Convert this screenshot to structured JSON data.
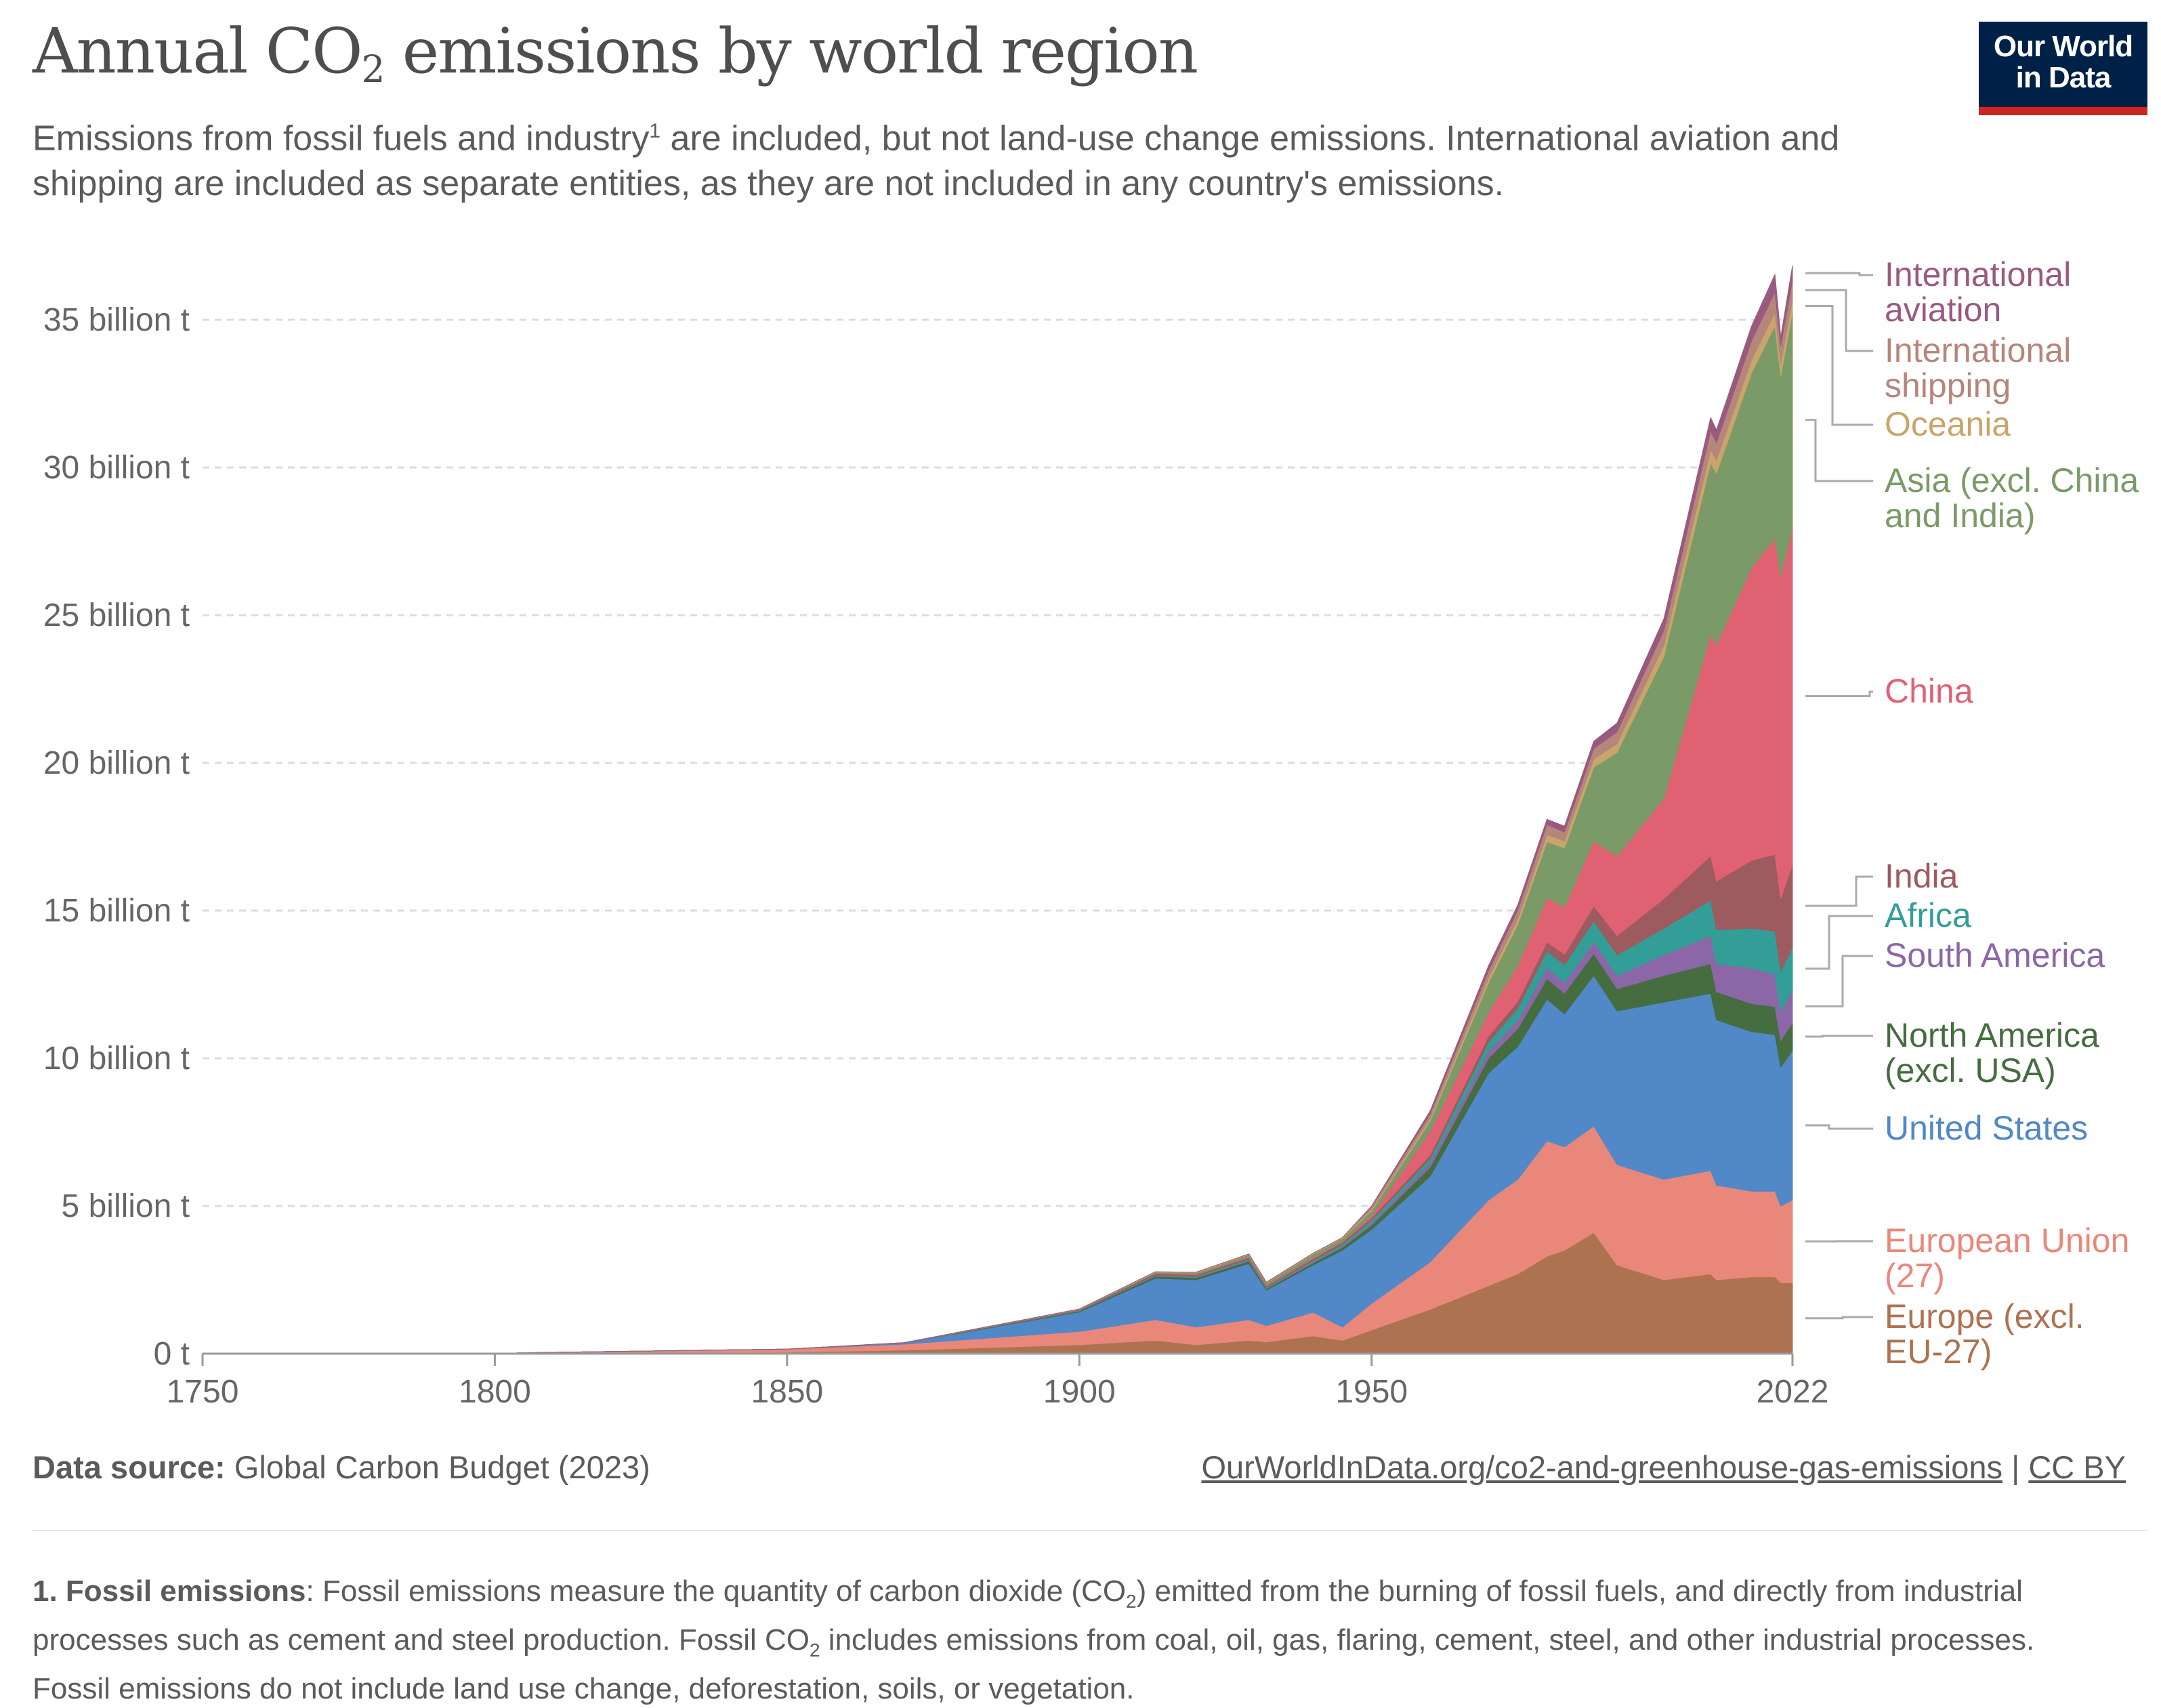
{
  "header": {
    "title_pre": "Annual CO",
    "title_sub": "2",
    "title_post": " emissions by world region",
    "subtitle_pre": "Emissions from fossil fuels and industry",
    "subtitle_sup": "1",
    "subtitle_post": " are included, but not land-use change emissions. International aviation and shipping are included as separate entities, as they are not included in any country's emissions.",
    "logo_line1": "Our World",
    "logo_line2": "in Data"
  },
  "footer": {
    "source_label": "Data source:",
    "source_value": " Global Carbon Budget (2023)",
    "link_text": "OurWorldInData.org/co2-and-greenhouse-gas-emissions",
    "separator": " | ",
    "license": "CC BY",
    "footnote_label": "1. Fossil emissions",
    "footnote_a": ": Fossil emissions measure the quantity of carbon dioxide (CO",
    "footnote_sub1": "2",
    "footnote_b": ") emitted from the burning of fossil fuels, and directly from industrial processes such as cement and steel production. Fossil CO",
    "footnote_sub2": "2",
    "footnote_c": " includes emissions from coal, oil, gas, flaring, cement, steel, and other industrial processes. Fossil emissions do not include land use change, deforestation, soils, or vegetation."
  },
  "chart_data": {
    "type": "area",
    "stacked": true,
    "title": "Annual CO2 emissions by world region",
    "xlabel": "",
    "ylabel": "",
    "xlim": [
      1750,
      2022
    ],
    "ylim": [
      0,
      37.5
    ],
    "unit": "billion t",
    "grid": "horizontal dashed",
    "legend": "right (end labels)",
    "x_ticks": [
      1750,
      1800,
      1850,
      1900,
      1950,
      2022
    ],
    "x_tick_labels": [
      "1750",
      "1800",
      "1850",
      "1900",
      "1950",
      "2022"
    ],
    "y_ticks": [
      0,
      5,
      10,
      15,
      20,
      25,
      30,
      35
    ],
    "y_tick_labels": [
      "0 t",
      "5 billion t",
      "10 billion t",
      "15 billion t",
      "20 billion t",
      "25 billion t",
      "30 billion t",
      "35 billion t"
    ],
    "x": [
      1750,
      1800,
      1850,
      1870,
      1900,
      1913,
      1920,
      1929,
      1932,
      1940,
      1945,
      1950,
      1960,
      1970,
      1975,
      1980,
      1983,
      1988,
      1992,
      2000,
      2008,
      2009,
      2015,
      2019,
      2020,
      2022
    ],
    "series": [
      {
        "name": "Europe (excl. EU-27)",
        "label_lines": [
          "Europe (excl.",
          "EU-27)"
        ],
        "color": "#ad7350",
        "values": [
          0,
          0.001,
          0.05,
          0.12,
          0.3,
          0.45,
          0.3,
          0.45,
          0.4,
          0.6,
          0.45,
          0.8,
          1.5,
          2.3,
          2.7,
          3.3,
          3.5,
          4.1,
          3.0,
          2.5,
          2.7,
          2.5,
          2.6,
          2.6,
          2.4,
          2.4
        ]
      },
      {
        "name": "European Union (27)",
        "label_lines": [
          "European Union",
          "(27)"
        ],
        "color": "#e9887a",
        "values": [
          0.009,
          0.015,
          0.1,
          0.2,
          0.45,
          0.7,
          0.6,
          0.7,
          0.55,
          0.8,
          0.45,
          0.9,
          1.6,
          2.9,
          3.2,
          3.9,
          3.5,
          3.6,
          3.4,
          3.4,
          3.5,
          3.2,
          2.9,
          2.9,
          2.6,
          2.8
        ]
      },
      {
        "name": "United States",
        "label_lines": [
          "United States"
        ],
        "color": "#5088c8",
        "values": [
          0,
          0.0003,
          0.005,
          0.04,
          0.66,
          1.4,
          1.6,
          1.9,
          1.2,
          1.6,
          2.6,
          2.5,
          2.9,
          4.3,
          4.5,
          4.8,
          4.5,
          5.1,
          5.2,
          6.0,
          6.0,
          5.6,
          5.4,
          5.3,
          4.7,
          5.06
        ]
      },
      {
        "name": "North America (excl. USA)",
        "label_lines": [
          "North America",
          "(excl. USA)"
        ],
        "color": "#456d3f",
        "values": [
          0,
          0,
          0,
          0.005,
          0.03,
          0.07,
          0.07,
          0.08,
          0.05,
          0.07,
          0.1,
          0.15,
          0.3,
          0.5,
          0.6,
          0.7,
          0.7,
          0.75,
          0.75,
          0.9,
          1.0,
          0.95,
          0.95,
          0.95,
          0.9,
          0.95
        ]
      },
      {
        "name": "South America",
        "label_lines": [
          "South America"
        ],
        "color": "#8b67a8",
        "values": [
          0,
          0,
          0,
          0.002,
          0.01,
          0.02,
          0.02,
          0.03,
          0.02,
          0.03,
          0.04,
          0.07,
          0.15,
          0.25,
          0.3,
          0.38,
          0.36,
          0.4,
          0.45,
          0.7,
          0.95,
          0.95,
          1.2,
          1.1,
          1.0,
          1.1
        ]
      },
      {
        "name": "Africa",
        "label_lines": [
          "Africa"
        ],
        "color": "#339e98",
        "values": [
          0,
          0,
          0,
          0.001,
          0.01,
          0.02,
          0.03,
          0.04,
          0.03,
          0.05,
          0.06,
          0.1,
          0.15,
          0.3,
          0.4,
          0.55,
          0.6,
          0.7,
          0.7,
          0.9,
          1.2,
          1.15,
          1.35,
          1.45,
          1.35,
          1.45
        ]
      },
      {
        "name": "India",
        "label_lines": [
          "India"
        ],
        "color": "#9d5a5f",
        "values": [
          0,
          0,
          0,
          0.002,
          0.03,
          0.05,
          0.05,
          0.05,
          0.04,
          0.06,
          0.07,
          0.07,
          0.12,
          0.2,
          0.23,
          0.3,
          0.36,
          0.5,
          0.65,
          1.0,
          1.5,
          1.65,
          2.3,
          2.6,
          2.45,
          2.8
        ]
      },
      {
        "name": "China",
        "label_lines": [
          "China"
        ],
        "color": "#e06172",
        "values": [
          0,
          0,
          0,
          0,
          0.001,
          0.01,
          0.02,
          0.03,
          0.03,
          0.04,
          0.03,
          0.08,
          0.8,
          0.8,
          1.2,
          1.5,
          1.6,
          2.2,
          2.7,
          3.4,
          7.5,
          8.0,
          9.9,
          10.7,
          10.9,
          11.4
        ]
      },
      {
        "name": "Asia (excl. China and India)",
        "label_lines": [
          "Asia (excl. China",
          "and India)"
        ],
        "color": "#7a9b68",
        "values": [
          0,
          0,
          0,
          0,
          0.01,
          0.03,
          0.05,
          0.07,
          0.08,
          0.12,
          0.1,
          0.17,
          0.35,
          1.0,
          1.4,
          1.9,
          2.0,
          2.5,
          3.5,
          4.8,
          5.8,
          5.8,
          6.6,
          7.2,
          6.8,
          7.3
        ]
      },
      {
        "name": "Oceania",
        "label_lines": [
          "Oceania"
        ],
        "color": "#c9a56a",
        "values": [
          0,
          0,
          0,
          0.002,
          0.01,
          0.02,
          0.02,
          0.025,
          0.02,
          0.03,
          0.03,
          0.04,
          0.09,
          0.16,
          0.19,
          0.23,
          0.24,
          0.28,
          0.3,
          0.38,
          0.44,
          0.44,
          0.44,
          0.44,
          0.42,
          0.42
        ]
      },
      {
        "name": "International shipping",
        "label_lines": [
          "International",
          "shipping"
        ],
        "color": "#b5867a",
        "values": [
          0,
          0,
          0,
          0,
          0,
          0,
          0,
          0,
          0,
          0,
          0,
          0.1,
          0.15,
          0.25,
          0.3,
          0.35,
          0.3,
          0.35,
          0.4,
          0.5,
          0.65,
          0.6,
          0.65,
          0.7,
          0.6,
          0.65
        ]
      },
      {
        "name": "International aviation",
        "label_lines": [
          "International",
          "aviation"
        ],
        "color": "#9a5a7f",
        "values": [
          0,
          0,
          0,
          0,
          0,
          0,
          0,
          0,
          0,
          0,
          0,
          0.02,
          0.1,
          0.17,
          0.17,
          0.18,
          0.2,
          0.25,
          0.3,
          0.4,
          0.45,
          0.43,
          0.5,
          0.6,
          0.3,
          0.5
        ]
      }
    ]
  }
}
